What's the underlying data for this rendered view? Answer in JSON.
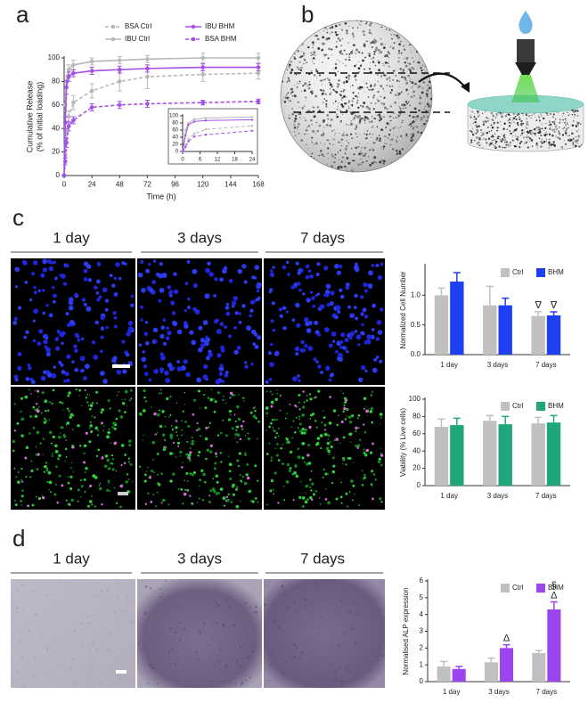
{
  "panel_labels": [
    "a",
    "b",
    "c",
    "d"
  ],
  "image_columns": {
    "c": [
      "1 day",
      "3 days",
      "7 days"
    ],
    "d": [
      "1 day",
      "3 days",
      "7 days"
    ]
  },
  "chart_data": [
    {
      "type": "line",
      "xlabel": "Time (h)",
      "ylabel": [
        "Cumulative Release",
        "(% of initial loading)"
      ],
      "x": [
        0,
        1,
        2,
        4,
        8,
        24,
        48,
        72,
        120,
        168
      ],
      "xlim": [
        0,
        168
      ],
      "xticks": [
        0,
        24,
        48,
        72,
        96,
        120,
        144,
        168
      ],
      "ylim": [
        0,
        100
      ],
      "yticks": [
        0,
        20,
        40,
        60,
        80,
        100
      ],
      "legend": "top",
      "series": [
        {
          "name": "BSA Ctrl",
          "color": "#b8b8b8",
          "linestyle": "dashed",
          "values": [
            0,
            18,
            35,
            50,
            62,
            72,
            80,
            84,
            86,
            87
          ],
          "errors": [
            0,
            3,
            4,
            5,
            6,
            6,
            8,
            10,
            6,
            5
          ]
        },
        {
          "name": "IBU Ctrl",
          "color": "#b8b8b8",
          "linestyle": "solid",
          "values": [
            0,
            60,
            80,
            90,
            94,
            97,
            98,
            99,
            100,
            100
          ],
          "errors": [
            0,
            5,
            5,
            4,
            4,
            3,
            3,
            3,
            4,
            4
          ]
        },
        {
          "name": "IBU BHM",
          "color": "#a450e8",
          "linestyle": "solid",
          "values": [
            0,
            45,
            75,
            84,
            87,
            89,
            90,
            91,
            92,
            92
          ],
          "errors": [
            0,
            5,
            6,
            4,
            3,
            3,
            3,
            3,
            3,
            3
          ]
        },
        {
          "name": "BSA BHM",
          "color": "#a450e8",
          "linestyle": "dashed",
          "values": [
            0,
            12,
            28,
            42,
            47,
            58,
            60,
            61,
            62,
            63
          ],
          "errors": [
            0,
            3,
            4,
            4,
            3,
            3,
            3,
            3,
            2,
            2
          ]
        }
      ]
    },
    {
      "type": "line",
      "x": [
        0,
        1,
        2,
        4,
        8,
        24
      ],
      "xlim": [
        0,
        24
      ],
      "xticks": [
        0,
        6,
        12,
        18,
        24
      ],
      "ylim": [
        0,
        100
      ],
      "yticks": [
        0,
        20,
        40,
        60,
        80,
        100
      ],
      "series": [
        {
          "color": "#b8b8b8",
          "linestyle": "dashed",
          "values": [
            0,
            18,
            35,
            50,
            62,
            72
          ]
        },
        {
          "color": "#b8b8b8",
          "linestyle": "solid",
          "values": [
            0,
            60,
            80,
            90,
            94,
            97
          ]
        },
        {
          "color": "#a450e8",
          "linestyle": "solid",
          "values": [
            0,
            45,
            75,
            84,
            87,
            89
          ]
        },
        {
          "color": "#a450e8",
          "linestyle": "dashed",
          "values": [
            0,
            12,
            28,
            42,
            47,
            58
          ]
        }
      ]
    },
    {
      "type": "bar",
      "ylabel": "Normalized Cell Number",
      "categories": [
        "1 day",
        "3 days",
        "7 days"
      ],
      "ylim": [
        0,
        1.5
      ],
      "yticks": [
        {
          "value": 0,
          "label": "0.0"
        },
        {
          "value": 0.5,
          "label": "0.5"
        },
        {
          "value": 1,
          "label": "1.0"
        }
      ],
      "legend": "top-right",
      "series": [
        {
          "name": "Ctrl",
          "color": "#c0c0c0",
          "values": [
            1.0,
            0.83,
            0.65
          ],
          "errors": [
            0.12,
            0.32,
            0.07
          ]
        },
        {
          "name": "BHM",
          "color": "#1e3ff2",
          "values": [
            1.23,
            0.83,
            0.66
          ],
          "errors": [
            0.15,
            0.12,
            0.06
          ]
        }
      ],
      "annotations": [
        {
          "text": "∇",
          "series": "Ctrl",
          "category": "7 days"
        },
        {
          "text": "∇",
          "series": "BHM",
          "category": "7 days"
        }
      ]
    },
    {
      "type": "bar",
      "ylabel": "Viability (% Live cells)",
      "categories": [
        "1 day",
        "3 days",
        "7 days"
      ],
      "ylim": [
        0,
        100
      ],
      "yticks": [
        0,
        20,
        40,
        60,
        80,
        100
      ],
      "legend": "top-right",
      "series": [
        {
          "name": "Ctrl",
          "color": "#c0c0c0",
          "values": [
            68,
            75,
            72
          ],
          "errors": [
            9,
            6,
            7
          ]
        },
        {
          "name": "BHM",
          "color": "#1fa67c",
          "values": [
            70,
            71,
            73
          ],
          "errors": [
            8,
            9,
            8
          ]
        }
      ]
    },
    {
      "type": "bar",
      "ylabel": "Normalised ALP expression",
      "categories": [
        "1 day",
        "3 days",
        "7 days"
      ],
      "ylim": [
        0,
        6
      ],
      "yticks": [
        0,
        1,
        2,
        3,
        4,
        5,
        6
      ],
      "legend": "top-right",
      "series": [
        {
          "name": "Ctrl",
          "color": "#c0c0c0",
          "values": [
            0.9,
            1.15,
            1.7
          ],
          "errors": [
            0.3,
            0.25,
            0.15
          ]
        },
        {
          "name": "BHM",
          "color": "#9b45ee",
          "values": [
            0.75,
            2.0,
            4.3
          ],
          "errors": [
            0.15,
            0.2,
            0.45
          ]
        }
      ],
      "annotations": [
        {
          "text": "Δ",
          "series": "BHM",
          "category": "3 days"
        },
        {
          "text": "Δ",
          "series": "BHM",
          "category": "7 days"
        },
        {
          "text": "§",
          "series": "BHM",
          "category": "7 days"
        }
      ]
    }
  ]
}
